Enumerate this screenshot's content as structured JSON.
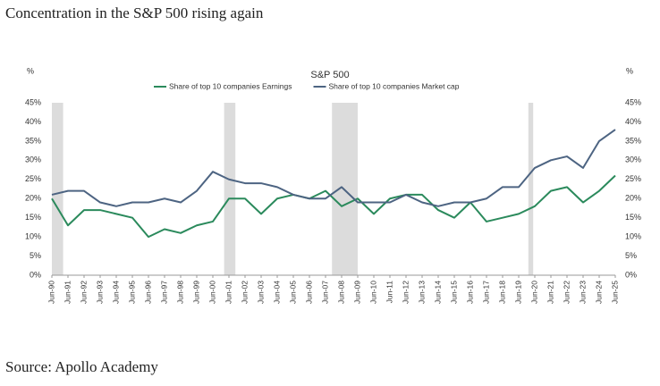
{
  "title": "Concentration in the S&P 500 rising again",
  "source": "Source: Apollo Academy",
  "chart_data": {
    "type": "line",
    "title": "S&P 500",
    "y_label": "%",
    "y2_label": "%",
    "categories": [
      "Jun-90",
      "Jun-91",
      "Jun-92",
      "Jun-93",
      "Jun-94",
      "Jun-95",
      "Jun-96",
      "Jun-97",
      "Jun-98",
      "Jun-99",
      "Jun-00",
      "Jun-01",
      "Jun-02",
      "Jun-03",
      "Jun-04",
      "Jun-05",
      "Jun-06",
      "Jun-07",
      "Jun-08",
      "Jun-09",
      "Jun-10",
      "Jun-11",
      "Jun-12",
      "Jun-13",
      "Jun-14",
      "Jun-15",
      "Jun-16",
      "Jun-17",
      "Jun-18",
      "Jun-19",
      "Jun-20",
      "Jun-21",
      "Jun-22",
      "Jun-23",
      "Jun-24",
      "Jun-25"
    ],
    "series": [
      {
        "name": "Share of top 10 companies Earnings",
        "color": "#2b8a5c",
        "values": [
          20,
          13,
          17,
          17,
          16,
          15,
          10,
          12,
          11,
          13,
          14,
          20,
          20,
          16,
          20,
          21,
          20,
          22,
          18,
          20,
          16,
          20,
          21,
          21,
          17,
          15,
          19,
          14,
          15,
          16,
          18,
          22,
          23,
          19,
          22,
          26
        ]
      },
      {
        "name": "Share of top 10 companies Market cap",
        "color": "#4d6482",
        "values": [
          21,
          22,
          22,
          19,
          18,
          19,
          19,
          20,
          19,
          22,
          27,
          25,
          24,
          24,
          23,
          21,
          20,
          20,
          23,
          19,
          19,
          19,
          21,
          19,
          18,
          19,
          19,
          20,
          23,
          23,
          28,
          30,
          31,
          28,
          35,
          38
        ]
      }
    ],
    "shaded_periods": [
      [
        1990.5,
        1991.2
      ],
      [
        2001.2,
        2001.9
      ],
      [
        2007.9,
        2009.5
      ],
      [
        2020.1,
        2020.4
      ]
    ],
    "ylim": [
      0,
      45
    ],
    "yticks": [
      {
        "value": 0,
        "label": "0%"
      },
      {
        "value": 5,
        "label": "5%"
      },
      {
        "value": 10,
        "label": "10%"
      },
      {
        "value": 15,
        "label": "15%"
      },
      {
        "value": 20,
        "label": "20%"
      },
      {
        "value": 25,
        "label": "25%"
      },
      {
        "value": 30,
        "label": "30%"
      },
      {
        "value": 35,
        "label": "35%"
      },
      {
        "value": 40,
        "label": "40%"
      },
      {
        "value": 45,
        "label": "45%"
      }
    ],
    "y2lim": [
      0,
      45
    ],
    "y2ticks": [
      {
        "value": 0,
        "label": "0%"
      },
      {
        "value": 5,
        "label": "5%"
      },
      {
        "value": 10,
        "label": "10%"
      },
      {
        "value": 15,
        "label": "15%"
      },
      {
        "value": 20,
        "label": "20%"
      },
      {
        "value": 25,
        "label": "25%"
      },
      {
        "value": 30,
        "label": "30%"
      },
      {
        "value": 35,
        "label": "35%"
      },
      {
        "value": 40,
        "label": "40%"
      },
      {
        "value": 45,
        "label": "45%"
      }
    ]
  }
}
